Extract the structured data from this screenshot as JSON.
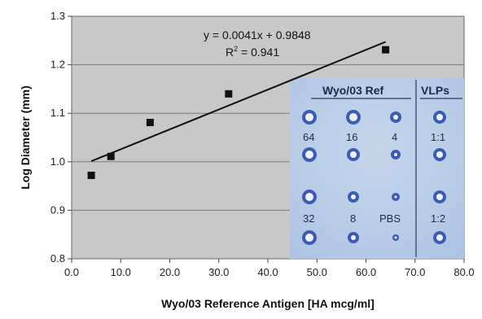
{
  "chart_data": {
    "type": "scatter",
    "xlabel": "Wyo/03 Reference Antigen [HA mcg/ml]",
    "ylabel": "Log Diameter (mm)",
    "xlim": [
      0,
      80
    ],
    "ylim": [
      0.8,
      1.3
    ],
    "x_ticks": [
      "0.0",
      "10.0",
      "20.0",
      "30.0",
      "40.0",
      "50.0",
      "60.0",
      "70.0",
      "80.0"
    ],
    "y_ticks": [
      "0.8",
      "0.9",
      "1.0",
      "1.1",
      "1.2",
      "1.3"
    ],
    "grid": true,
    "points": [
      {
        "x": 4,
        "y": 0.972
      },
      {
        "x": 8,
        "y": 1.011
      },
      {
        "x": 16,
        "y": 1.081
      },
      {
        "x": 32,
        "y": 1.14
      },
      {
        "x": 64,
        "y": 1.231
      }
    ],
    "trendline": {
      "slope": 0.0041,
      "intercept": 0.9848,
      "x_start": 4,
      "x_end": 64
    },
    "equation_text": "y = 0.0041x + 0.9848",
    "r2_prefix": "R",
    "r2_exponent": "2",
    "r2_suffix": " = 0.941",
    "colors": {
      "plot_bg": "#c8c8c8",
      "marker": "#111111",
      "line": "#111111"
    }
  },
  "inset": {
    "header_ref": "Wyo/03 Ref",
    "header_vlp": "VLPs",
    "labels": {
      "c64": "64",
      "c16": "16",
      "c4": "4",
      "c11": "1:1",
      "c32": "32",
      "c8": "8",
      "cpbs": "PBS",
      "c12": "1:2"
    }
  }
}
